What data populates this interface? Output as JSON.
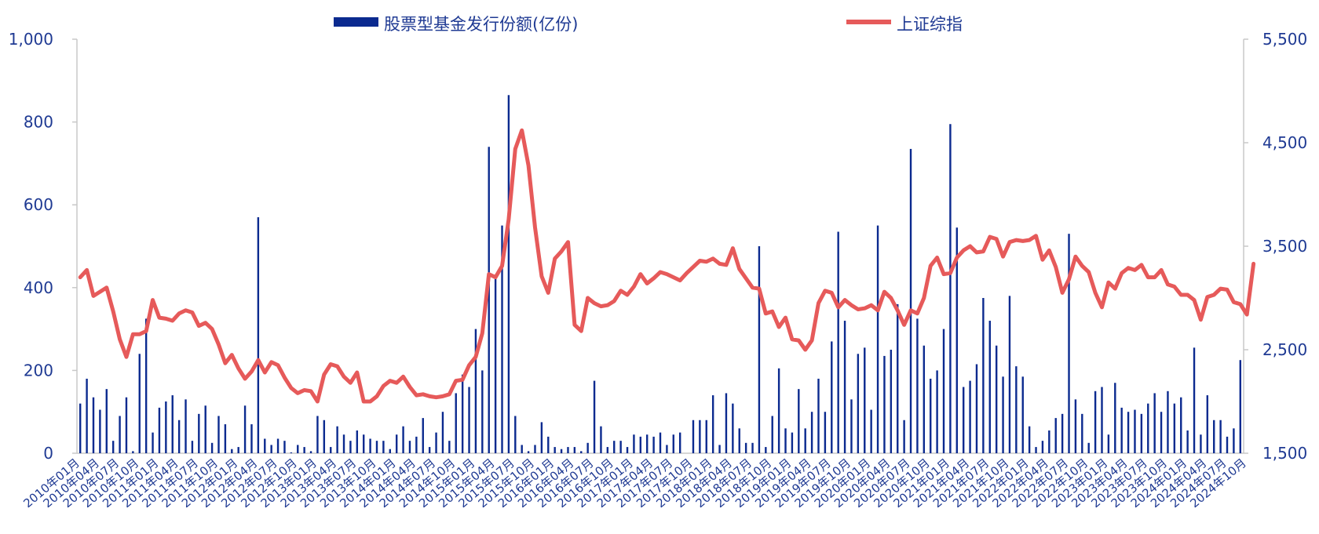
{
  "chart_data": {
    "type": "bar+line",
    "legend": [
      {
        "label": "股票型基金发行份额(亿份)",
        "kind": "bar",
        "color": "#0b2a8f"
      },
      {
        "label": "上证综指",
        "kind": "line",
        "color": "#e65a5a"
      }
    ],
    "legend_position": "top",
    "y_left": {
      "min": 0,
      "max": 1000,
      "ticks": [
        "0",
        "200",
        "400",
        "600",
        "800",
        "1,000"
      ]
    },
    "y_right": {
      "min": 1500,
      "max": 5500,
      "ticks": [
        "1,500",
        "2,500",
        "3,500",
        "4,500",
        "5,500"
      ]
    },
    "x_tick_labels": [
      "2010年01月",
      "2010年04月",
      "2010年07月",
      "2010年10月",
      "2011年01月",
      "2011年04月",
      "2011年07月",
      "2011年10月",
      "2012年01月",
      "2012年04月",
      "2012年07月",
      "2012年10月",
      "2013年01月",
      "2013年04月",
      "2013年07月",
      "2013年10月",
      "2014年01月",
      "2014年04月",
      "2014年07月",
      "2014年10月",
      "2015年01月",
      "2015年04月",
      "2015年07月",
      "2015年10月",
      "2016年01月",
      "2016年04月",
      "2016年07月",
      "2016年10月",
      "2017年01月",
      "2017年04月",
      "2017年07月",
      "2017年10月",
      "2018年01月",
      "2018年04月",
      "2018年07月",
      "2018年10月",
      "2019年01月",
      "2019年04月",
      "2019年07月",
      "2019年10月",
      "2020年01月",
      "2020年04月",
      "2020年07月",
      "2020年10月",
      "2021年01月",
      "2021年04月",
      "2021年07月",
      "2021年10月",
      "2022年01月",
      "2022年04月",
      "2022年07月",
      "2022年10月",
      "2023年01月",
      "2023年04月",
      "2023年07月",
      "2023年10月",
      "2024年01月",
      "2024年04月",
      "2024年07月",
      "2024年10月"
    ],
    "series": [
      {
        "name": "股票型基金发行份额(亿份)",
        "axis": "left",
        "type": "bar",
        "values": [
          120,
          180,
          135,
          105,
          155,
          30,
          90,
          135,
          5,
          240,
          325,
          50,
          110,
          125,
          140,
          80,
          130,
          30,
          95,
          115,
          25,
          90,
          70,
          10,
          15,
          115,
          70,
          570,
          35,
          20,
          35,
          30,
          2,
          20,
          15,
          5,
          90,
          80,
          15,
          65,
          45,
          30,
          55,
          45,
          35,
          30,
          30,
          10,
          45,
          65,
          30,
          40,
          85,
          15,
          50,
          100,
          30,
          145,
          190,
          160,
          300,
          200,
          740,
          430,
          550,
          865,
          90,
          20,
          5,
          20,
          75,
          40,
          15,
          10,
          15,
          15,
          5,
          25,
          175,
          65,
          15,
          30,
          30,
          15,
          45,
          40,
          45,
          40,
          50,
          20,
          45,
          50,
          0,
          80,
          80,
          80,
          140,
          20,
          145,
          120,
          60,
          25,
          25,
          500,
          15,
          90,
          205,
          60,
          50,
          155,
          60,
          100,
          180,
          100,
          270,
          535,
          320,
          130,
          240,
          255,
          105,
          550,
          235,
          250,
          360,
          80,
          735,
          325,
          260,
          180,
          200,
          300,
          795,
          545,
          160,
          175,
          215,
          375,
          320,
          260,
          185,
          380,
          210,
          185,
          65,
          15,
          30,
          55,
          85,
          95,
          530,
          130,
          95,
          25,
          150,
          160,
          45,
          170,
          110,
          100,
          105,
          95,
          120,
          145,
          100,
          150,
          120,
          135,
          55,
          255,
          45,
          140,
          80,
          80,
          40,
          60,
          225
        ]
      },
      {
        "name": "上证综指",
        "axis": "right",
        "type": "line",
        "values": [
          3200,
          3270,
          3020,
          3060,
          3100,
          2870,
          2600,
          2430,
          2650,
          2650,
          2680,
          2980,
          2810,
          2800,
          2780,
          2850,
          2880,
          2860,
          2730,
          2760,
          2700,
          2550,
          2370,
          2450,
          2320,
          2220,
          2290,
          2400,
          2280,
          2380,
          2350,
          2230,
          2130,
          2080,
          2110,
          2100,
          2000,
          2260,
          2360,
          2340,
          2240,
          2180,
          2280,
          2000,
          2000,
          2050,
          2150,
          2200,
          2180,
          2240,
          2140,
          2060,
          2070,
          2050,
          2040,
          2050,
          2070,
          2200,
          2210,
          2350,
          2430,
          2660,
          3230,
          3200,
          3310,
          3760,
          4440,
          4620,
          4280,
          3680,
          3210,
          3050,
          3380,
          3450,
          3540,
          2740,
          2680,
          3000,
          2950,
          2920,
          2930,
          2970,
          3070,
          3030,
          3110,
          3230,
          3140,
          3190,
          3250,
          3230,
          3200,
          3170,
          3240,
          3300,
          3360,
          3350,
          3380,
          3330,
          3320,
          3480,
          3280,
          3190,
          3100,
          3090,
          2850,
          2870,
          2720,
          2810,
          2600,
          2590,
          2500,
          2590,
          2950,
          3070,
          3050,
          2910,
          2980,
          2930,
          2890,
          2900,
          2930,
          2880,
          3060,
          3000,
          2880,
          2740,
          2880,
          2850,
          3000,
          3310,
          3390,
          3230,
          3240,
          3390,
          3460,
          3500,
          3440,
          3450,
          3590,
          3570,
          3400,
          3540,
          3560,
          3550,
          3560,
          3600,
          3370,
          3460,
          3300,
          3050,
          3180,
          3400,
          3310,
          3250,
          3050,
          2910,
          3150,
          3090,
          3240,
          3290,
          3270,
          3320,
          3200,
          3200,
          3270,
          3130,
          3110,
          3030,
          3030,
          2980,
          2790,
          3010,
          3030,
          3090,
          3080,
          2960,
          2940,
          2840,
          3330
        ]
      }
    ]
  }
}
